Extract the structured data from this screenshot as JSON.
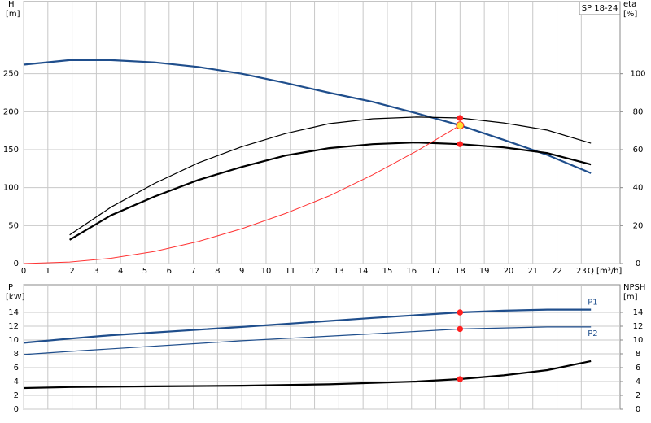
{
  "chart_data": [
    {
      "type": "line",
      "label": "SP 18-24",
      "ylabel": "H",
      "yunit": "[m]",
      "y2label": "eta",
      "y2unit": "[%]",
      "xlabel": "Q [m³/h]",
      "xlim": [
        0,
        24.6
      ],
      "xticks": [
        0,
        1,
        2,
        3,
        4,
        5,
        6,
        7,
        8,
        9,
        10,
        11,
        12,
        13,
        14,
        15,
        16,
        17,
        18,
        19,
        20,
        21,
        22,
        23
      ],
      "ylim": [
        0,
        345
      ],
      "yticks": [
        0,
        50,
        100,
        150,
        200,
        250
      ],
      "y2lim": [
        0,
        138
      ],
      "y2ticks": [
        0,
        20,
        40,
        60,
        80,
        100
      ],
      "grid": true,
      "series": [
        {
          "color": "#1f4e8c",
          "axis": "y",
          "width": 2.2,
          "x": [
            0,
            1.9,
            3.6,
            5.4,
            7.2,
            9,
            10.8,
            12.6,
            14.4,
            16.2,
            18,
            19.8,
            21.6,
            23.4
          ],
          "values": [
            262,
            268,
            268,
            265,
            259,
            250,
            238,
            225,
            213,
            198,
            182,
            163,
            143,
            119
          ]
        },
        {
          "color": "#000000",
          "axis": "y2",
          "width": 1.2,
          "x": [
            1.9,
            3.6,
            5.4,
            7.2,
            9,
            10.8,
            12.6,
            14.4,
            16.2,
            18,
            19.8,
            21.6,
            23.4
          ],
          "values": [
            15.1,
            29.7,
            42.2,
            53,
            61.6,
            68.5,
            73.7,
            76.3,
            77.2,
            76.7,
            74.1,
            70.3,
            63.4
          ]
        },
        {
          "color": "#000000",
          "axis": "y2",
          "width": 2.2,
          "x": [
            1.9,
            3.6,
            5.4,
            7.2,
            9,
            10.8,
            12.6,
            14.4,
            16.2,
            18,
            19.8,
            21.6,
            23.4
          ],
          "values": [
            12.5,
            25.4,
            35.3,
            44,
            50.9,
            56.9,
            60.8,
            62.9,
            63.8,
            62.9,
            61.2,
            58.2,
            52.2
          ]
        },
        {
          "color": "#ff3333",
          "axis": "y",
          "width": 1,
          "x": [
            0,
            1.9,
            3.6,
            5.4,
            7.2,
            9,
            10.8,
            12.6,
            14.4,
            16.2,
            18
          ],
          "values": [
            0,
            2,
            7,
            16,
            29,
            46,
            66,
            89,
            117,
            148,
            182
          ]
        }
      ],
      "points": [
        {
          "x": 18,
          "y": 76.7,
          "axis": "y2",
          "color": "#ff2020"
        },
        {
          "x": 18,
          "y": 62.9,
          "axis": "y2",
          "color": "#ff2020"
        },
        {
          "x": 18,
          "y": 182,
          "axis": "y",
          "color": "#ffe030"
        }
      ]
    },
    {
      "type": "line",
      "ylabel": "P",
      "yunit": "[kW]",
      "y2label": "NPSH",
      "y2unit": "[m]",
      "xlim": [
        0,
        24.6
      ],
      "ylim": [
        0,
        18
      ],
      "yticks": [
        0,
        2,
        4,
        6,
        8,
        10,
        12,
        14
      ],
      "y2lim": [
        0,
        18
      ],
      "y2ticks": [
        0,
        2,
        4,
        6,
        8,
        10,
        12,
        14
      ],
      "grid": true,
      "series": [
        {
          "name": "P1",
          "color": "#1f4e8c",
          "axis": "y",
          "width": 2.2,
          "x": [
            0,
            1.9,
            3.6,
            9,
            14.4,
            18,
            19.8,
            21.6,
            23.4
          ],
          "values": [
            9.6,
            10.2,
            10.7,
            11.9,
            13.2,
            14,
            14.25,
            14.4,
            14.4
          ]
        },
        {
          "name": "P2",
          "color": "#1f4e8c",
          "axis": "y",
          "width": 1.2,
          "x": [
            0,
            1.9,
            9,
            14.4,
            18,
            21.6,
            23.4
          ],
          "values": [
            7.9,
            8.35,
            9.9,
            10.9,
            11.6,
            11.9,
            11.9
          ]
        },
        {
          "color": "#000000",
          "axis": "y2",
          "width": 2.2,
          "x": [
            0,
            1.9,
            5.4,
            9,
            12.6,
            16.2,
            18,
            19.8,
            21.6,
            23.4
          ],
          "values": [
            3.06,
            3.2,
            3.3,
            3.4,
            3.6,
            4.0,
            4.35,
            4.9,
            5.65,
            6.95
          ]
        }
      ],
      "points": [
        {
          "x": 18,
          "y": 14,
          "axis": "y",
          "color": "#ff2020"
        },
        {
          "x": 18,
          "y": 11.6,
          "axis": "y",
          "color": "#ff2020"
        },
        {
          "x": 18,
          "y": 4.35,
          "axis": "y2",
          "color": "#ff2020"
        }
      ]
    }
  ]
}
